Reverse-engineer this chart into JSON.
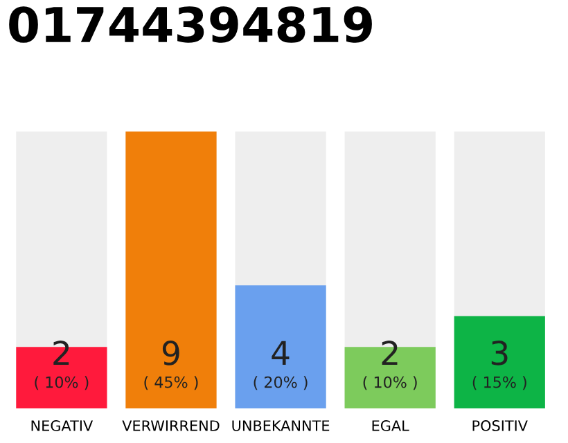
{
  "chart_data": {
    "type": "bar",
    "title": "01744394819",
    "categories": [
      "NEGATIV",
      "VERWIRREND",
      "UNBEKANNTE",
      "EGAL",
      "POSITIV"
    ],
    "values": [
      2,
      9,
      4,
      2,
      3
    ],
    "colors": [
      "#ff1a3c",
      "#f07f0a",
      "#6aa0ee",
      "#7dcb5c",
      "#0db446"
    ],
    "ylim": [
      0,
      9
    ],
    "tick_labels": "x",
    "grid": false,
    "legend": false,
    "data_labels": true,
    "annotations": [
      "( 10% )",
      "( 45% )",
      "( 20% )",
      "( 10% )",
      "( 15% )"
    ]
  }
}
